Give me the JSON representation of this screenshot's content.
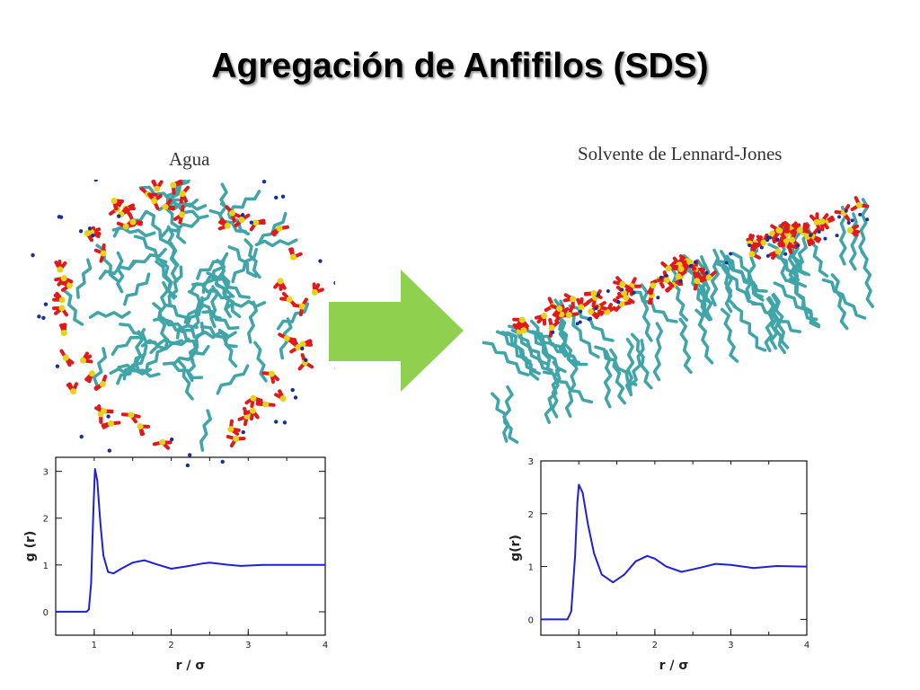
{
  "slide": {
    "title": "Agregación de Anfifilos (SDS)"
  },
  "panels": {
    "left_caption": "Agua",
    "right_caption": "Solvente de Lennard-Jones"
  },
  "colors": {
    "curve": "#1f1fd6",
    "tail": "#3fa5a8",
    "oxygen": "#e01a1a",
    "sulfur": "#e6d21a",
    "ion": "#1a2f9e",
    "arrow": "#8fd14f"
  },
  "icons": {
    "arrow": "right-arrow-icon"
  },
  "chart_data": [
    {
      "type": "line",
      "xlabel": "r / σ",
      "ylabel": "g (r)",
      "xlim": [
        0.5,
        4
      ],
      "ylim": [
        -0.5,
        3.3
      ],
      "xticks": [
        1,
        2,
        3,
        4
      ],
      "yticks": [
        0,
        1,
        2,
        3
      ],
      "series": [
        {
          "x": [
            0.5,
            0.9,
            0.93,
            0.96,
            0.99,
            1.01,
            1.04,
            1.08,
            1.12,
            1.18,
            1.25,
            1.35,
            1.5,
            1.65,
            1.8,
            2.0,
            2.2,
            2.4,
            2.5,
            2.7,
            2.9,
            3.2,
            3.5,
            4.0
          ],
          "y": [
            0.0,
            0.0,
            0.05,
            0.6,
            2.2,
            3.05,
            2.8,
            1.9,
            1.2,
            0.85,
            0.82,
            0.92,
            1.05,
            1.1,
            1.02,
            0.92,
            0.97,
            1.03,
            1.05,
            1.01,
            0.98,
            1.0,
            1.0,
            1.0
          ]
        }
      ]
    },
    {
      "type": "line",
      "xlabel": "r / σ",
      "ylabel": "g(r)",
      "xlim": [
        0.5,
        4
      ],
      "ylim": [
        -0.3,
        3
      ],
      "xticks": [
        1,
        2,
        3,
        4
      ],
      "yticks": [
        0,
        1,
        2,
        3
      ],
      "series": [
        {
          "x": [
            0.5,
            0.85,
            0.9,
            0.95,
            0.98,
            1.0,
            1.05,
            1.12,
            1.2,
            1.3,
            1.45,
            1.6,
            1.75,
            1.9,
            2.0,
            2.15,
            2.35,
            2.6,
            2.8,
            3.0,
            3.3,
            3.6,
            4.0
          ],
          "y": [
            0.0,
            0.0,
            0.15,
            1.2,
            2.2,
            2.55,
            2.4,
            1.8,
            1.25,
            0.85,
            0.7,
            0.85,
            1.1,
            1.2,
            1.15,
            1.0,
            0.9,
            0.98,
            1.05,
            1.03,
            0.97,
            1.01,
            1.0
          ]
        }
      ]
    }
  ]
}
